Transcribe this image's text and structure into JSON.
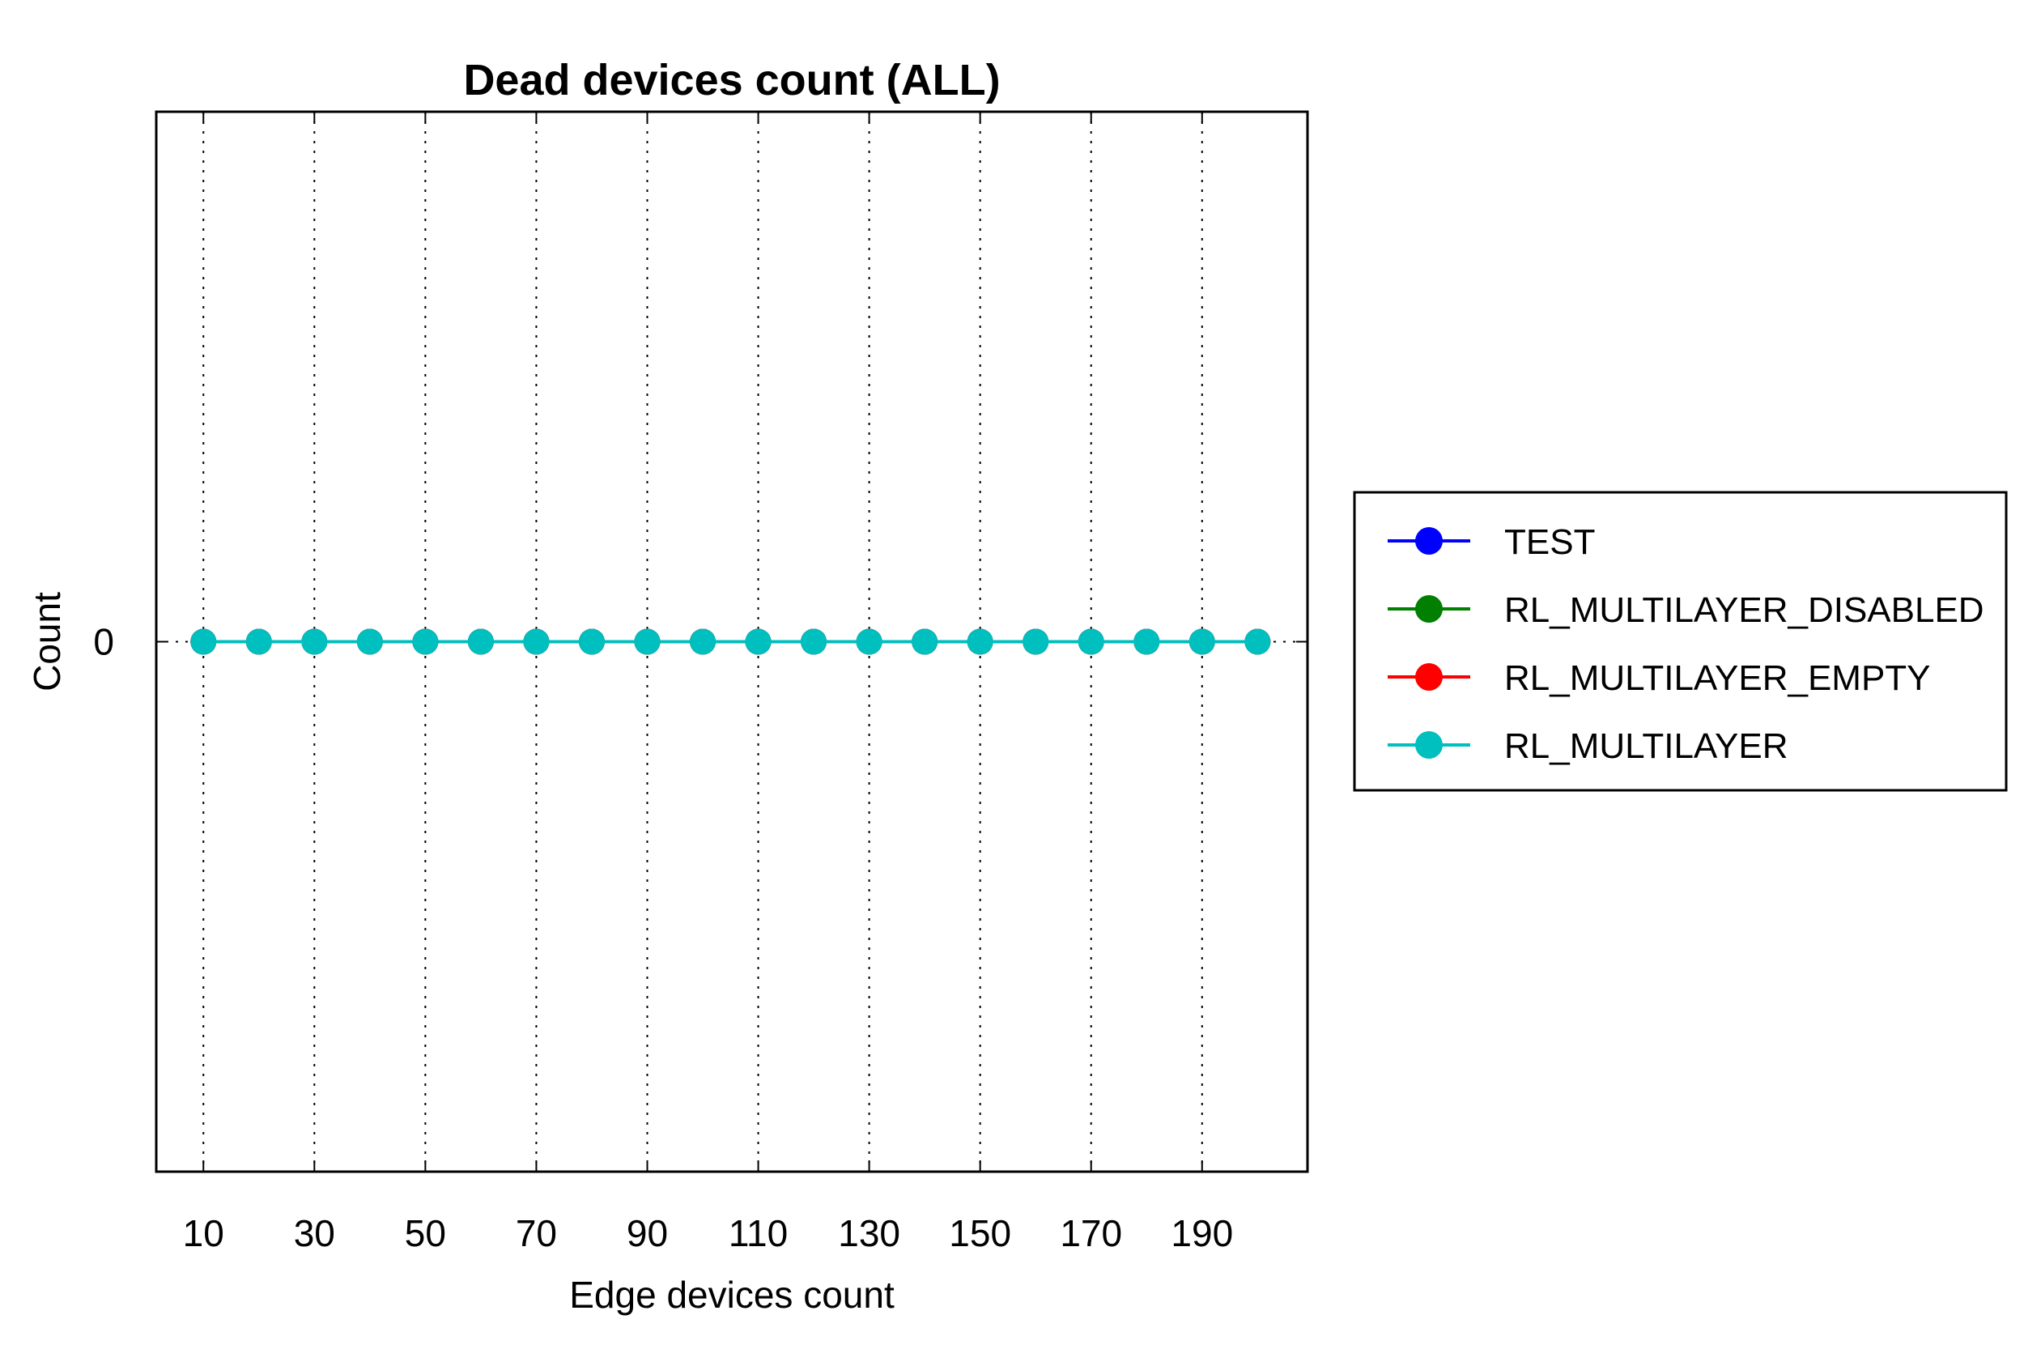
{
  "chart_data": {
    "type": "line",
    "title": "Dead devices count (ALL)",
    "xlabel": "Edge devices count",
    "ylabel": "Count",
    "x": [
      10,
      20,
      30,
      40,
      50,
      60,
      70,
      80,
      90,
      100,
      110,
      120,
      130,
      140,
      150,
      160,
      170,
      180,
      190,
      200
    ],
    "xticks": [
      10,
      30,
      50,
      70,
      90,
      110,
      130,
      150,
      170,
      190
    ],
    "yticks": [
      0
    ],
    "xlim": [
      1.5,
      209
    ],
    "ylim": [
      -1,
      1
    ],
    "grid": "x-dotted",
    "legend_position": "right",
    "series": [
      {
        "name": "TEST",
        "color": "#0000ff",
        "values": [
          0,
          0,
          0,
          0,
          0,
          0,
          0,
          0,
          0,
          0,
          0,
          0,
          0,
          0,
          0,
          0,
          0,
          0,
          0,
          0
        ]
      },
      {
        "name": "RL_MULTILAYER_DISABLED",
        "color": "#007f00",
        "values": [
          0,
          0,
          0,
          0,
          0,
          0,
          0,
          0,
          0,
          0,
          0,
          0,
          0,
          0,
          0,
          0,
          0,
          0,
          0,
          0
        ]
      },
      {
        "name": "RL_MULTILAYER_EMPTY",
        "color": "#ff0000",
        "values": [
          0,
          0,
          0,
          0,
          0,
          0,
          0,
          0,
          0,
          0,
          0,
          0,
          0,
          0,
          0,
          0,
          0,
          0,
          0,
          0
        ]
      },
      {
        "name": "RL_MULTILAYER",
        "color": "#00bfbf",
        "values": [
          0,
          0,
          0,
          0,
          0,
          0,
          0,
          0,
          0,
          0,
          0,
          0,
          0,
          0,
          0,
          0,
          0,
          0,
          0,
          0
        ]
      }
    ]
  }
}
